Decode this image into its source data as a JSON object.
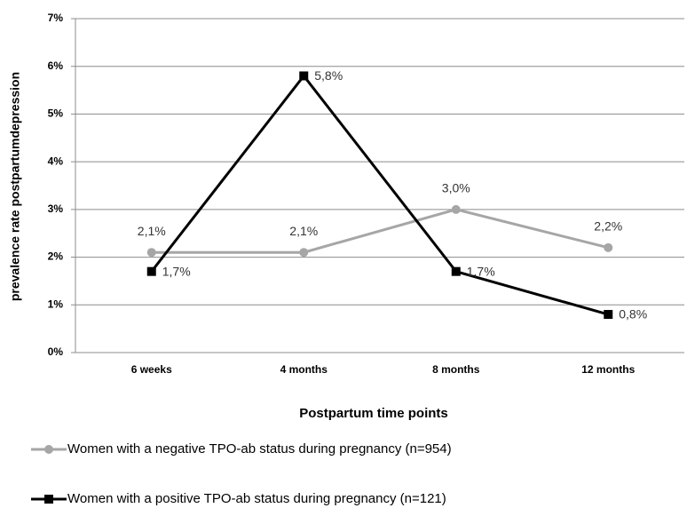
{
  "chart_data": {
    "type": "line",
    "y_label": "prevalence rate postpartumdepression",
    "x_label": "Postpartum time points",
    "categories": [
      "6 weeks",
      "4 months",
      "8 months",
      "12 months"
    ],
    "series": [
      {
        "name": "Women with a negative TPO-ab status during pregnancy (n=954)",
        "color": "#a6a6a6",
        "marker": "circle",
        "values": [
          2.1,
          2.1,
          3.0,
          2.2
        ],
        "value_labels": [
          "2,1%",
          "2,1%",
          "3,0%",
          "2,2%"
        ]
      },
      {
        "name": "Women with a positive TPO-ab status during pregnancy (n=121)",
        "color": "#000000",
        "marker": "square",
        "values": [
          1.7,
          5.8,
          1.7,
          0.8
        ],
        "value_labels": [
          "1,7%",
          "5,8%",
          "1,7%",
          "0,8%"
        ]
      }
    ],
    "ylim": [
      0,
      7
    ],
    "yticks": [
      {
        "value": 0,
        "label": "0%"
      },
      {
        "value": 1,
        "label": "1%"
      },
      {
        "value": 2,
        "label": "2%"
      },
      {
        "value": 3,
        "label": "3%"
      },
      {
        "value": 4,
        "label": "4%"
      },
      {
        "value": 5,
        "label": "5%"
      },
      {
        "value": 6,
        "label": "6%"
      },
      {
        "value": 7,
        "label": "7%"
      }
    ],
    "grid": true
  }
}
